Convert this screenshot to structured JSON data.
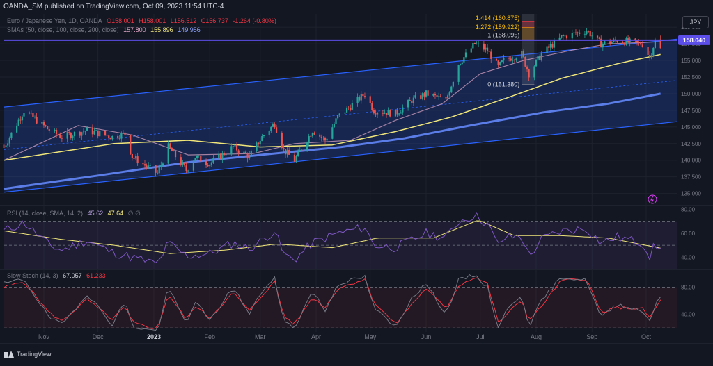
{
  "header": {
    "publisher_line": "OANDA_SM published on TradingView.com, Oct 09, 2023 11:54 UTC-4",
    "currency": "JPY"
  },
  "legend": {
    "symbol": "Euro / Japanese Yen, 1D, OANDA",
    "o": "O158.001",
    "h": "H158.001",
    "l": "L156.512",
    "c": "C156.737",
    "chg": "-1.264 (-0.80%)",
    "sma_label": "SMAs (50, close, 100, close, 200, close)",
    "sma50": "157.800",
    "sma100": "155.896",
    "sma200": "149.956",
    "sma50_color": "#e1a8c8",
    "sma100_color": "#f0e67a",
    "sma200_color": "#5b7de8"
  },
  "rsi_legend": {
    "label": "RSI (14, close, SMA, 14, 2)",
    "rsi": "45.62",
    "sma": "47.64",
    "extra": "∅ ∅"
  },
  "stoch_legend": {
    "label": "Slow Stoch (14, 3)",
    "k": "67.057",
    "d": "61.233"
  },
  "annotations": {
    "current_price": "158.040",
    "fib": [
      "1.414 (160.875)",
      "1.272 (159.922)",
      "1 (158.095)",
      "0 (151.380)"
    ]
  },
  "footer": {
    "brand": "TradingView"
  },
  "chart_data": [
    {
      "type": "candlestick",
      "title": "Euro / Japanese Yen, 1D, OANDA",
      "ylim": [
        133.5,
        162
      ],
      "y_ticks": [
        "160.000",
        "157.500",
        "155.000",
        "152.500",
        "150.000",
        "147.500",
        "145.000",
        "142.500",
        "140.000",
        "137.500",
        "135.000"
      ],
      "x_ticks": [
        "Nov",
        "Dec",
        "2023",
        "Feb",
        "Mar",
        "Apr",
        "May",
        "Jun",
        "Jul",
        "Aug",
        "Sep",
        "Oct"
      ],
      "x_range": [
        "2022-10-10",
        "2023-10-18"
      ],
      "close_path": [
        [
          "2022-10-10",
          142.0
        ],
        [
          "2022-10-21",
          147.5
        ],
        [
          "2022-11-04",
          144.5
        ],
        [
          "2022-11-11",
          143.5
        ],
        [
          "2022-11-25",
          144.5
        ],
        [
          "2022-12-09",
          143.5
        ],
        [
          "2022-12-16",
          144.0
        ],
        [
          "2022-12-20",
          140.5
        ],
        [
          "2023-01-03",
          138.0
        ],
        [
          "2023-01-09",
          142.0
        ],
        [
          "2023-01-19",
          138.5
        ],
        [
          "2023-01-24",
          140.5
        ],
        [
          "2023-02-01",
          139.5
        ],
        [
          "2023-02-14",
          142.0
        ],
        [
          "2023-02-23",
          140.5
        ],
        [
          "2023-03-02",
          143.5
        ],
        [
          "2023-03-09",
          145.5
        ],
        [
          "2023-03-14",
          141.5
        ],
        [
          "2023-03-20",
          140.0
        ],
        [
          "2023-03-30",
          144.5
        ],
        [
          "2023-04-06",
          143.0
        ],
        [
          "2023-04-13",
          146.5
        ],
        [
          "2023-04-28",
          150.0
        ],
        [
          "2023-05-03",
          147.5
        ],
        [
          "2023-05-15",
          147.0
        ],
        [
          "2023-05-24",
          149.0
        ],
        [
          "2023-06-01",
          150.0
        ],
        [
          "2023-06-12",
          149.0
        ],
        [
          "2023-06-19",
          154.5
        ],
        [
          "2023-06-28",
          157.5
        ],
        [
          "2023-07-05",
          156.5
        ],
        [
          "2023-07-11",
          154.0
        ],
        [
          "2023-07-14",
          155.0
        ],
        [
          "2023-07-24",
          156.0
        ],
        [
          "2023-07-28",
          153.0
        ],
        [
          "2023-08-04",
          156.0
        ],
        [
          "2023-08-15",
          158.5
        ],
        [
          "2023-08-29",
          159.5
        ],
        [
          "2023-09-06",
          157.5
        ],
        [
          "2023-09-15",
          158.0
        ],
        [
          "2023-09-29",
          157.5
        ],
        [
          "2023-10-03",
          155.5
        ],
        [
          "2023-10-06",
          158.0
        ],
        [
          "2023-10-09",
          156.7
        ]
      ],
      "series": [
        {
          "name": "SMA 50",
          "color": "#e1a8c8",
          "values": [
            [
              "2022-10-10",
              140.0
            ],
            [
              "2022-11-20",
              145.2
            ],
            [
              "2022-12-20",
              143.8
            ],
            [
              "2023-01-20",
              140.8
            ],
            [
              "2023-02-25",
              141.0
            ],
            [
              "2023-03-20",
              142.5
            ],
            [
              "2023-04-20",
              143.0
            ],
            [
              "2023-05-15",
              146.0
            ],
            [
              "2023-06-10",
              148.5
            ],
            [
              "2023-07-01",
              153.0
            ],
            [
              "2023-07-25",
              155.0
            ],
            [
              "2023-08-20",
              156.5
            ],
            [
              "2023-09-10",
              157.5
            ],
            [
              "2023-10-09",
              157.8
            ]
          ]
        },
        {
          "name": "SMA 100",
          "color": "#f0e67a",
          "values": [
            [
              "2022-10-10",
              140.0
            ],
            [
              "2022-12-10",
              142.5
            ],
            [
              "2023-01-20",
              143.0
            ],
            [
              "2023-03-01",
              142.0
            ],
            [
              "2023-04-10",
              142.3
            ],
            [
              "2023-05-15",
              144.3
            ],
            [
              "2023-06-15",
              146.5
            ],
            [
              "2023-07-15",
              149.3
            ],
            [
              "2023-08-15",
              152.3
            ],
            [
              "2023-09-15",
              154.5
            ],
            [
              "2023-10-09",
              155.9
            ]
          ]
        },
        {
          "name": "SMA 200",
          "color": "#5b7de8",
          "values": [
            [
              "2022-10-10",
              135.7
            ],
            [
              "2022-12-01",
              137.7
            ],
            [
              "2023-01-20",
              139.7
            ],
            [
              "2023-03-01",
              140.8
            ],
            [
              "2023-04-15",
              142.0
            ],
            [
              "2023-05-20",
              143.3
            ],
            [
              "2023-06-25",
              145.2
            ],
            [
              "2023-08-05",
              147.2
            ],
            [
              "2023-09-10",
              148.5
            ],
            [
              "2023-10-09",
              150.0
            ]
          ]
        }
      ],
      "channel": {
        "upper": [
          [
            "2022-10-10",
            148.0
          ],
          [
            "2023-10-18",
            158.2
          ]
        ],
        "lower": [
          [
            "2022-10-10",
            135.2
          ],
          [
            "2023-10-18",
            145.8
          ]
        ],
        "mid": [
          [
            "2022-10-10",
            141.6
          ],
          [
            "2023-10-18",
            152.0
          ]
        ]
      },
      "resistance": 158.04,
      "fib_box": {
        "from": "2023-07-24",
        "to": "2023-07-31",
        "levels": [
          160.875,
          159.922,
          158.095,
          151.38
        ]
      }
    },
    {
      "type": "line",
      "title": "RSI (14, close, SMA, 14, 2)",
      "ylim": [
        31.5,
        82
      ],
      "y_ticks": [
        "80.00",
        "60.00",
        "40.00"
      ],
      "bands": [
        30,
        50,
        70
      ],
      "series": [
        {
          "name": "RSI",
          "color": "#7e57c2",
          "values": [
            [
              "2022-10-10",
              62
            ],
            [
              "2022-10-21",
              69
            ],
            [
              "2022-11-04",
              50
            ],
            [
              "2022-11-11",
              46
            ],
            [
              "2022-11-25",
              54
            ],
            [
              "2022-12-09",
              44
            ],
            [
              "2022-12-20",
              40
            ],
            [
              "2023-01-03",
              34
            ],
            [
              "2023-01-09",
              52
            ],
            [
              "2023-01-19",
              41
            ],
            [
              "2023-02-01",
              43
            ],
            [
              "2023-02-14",
              52
            ],
            [
              "2023-02-23",
              47
            ],
            [
              "2023-03-09",
              62
            ],
            [
              "2023-03-14",
              42
            ],
            [
              "2023-03-20",
              38
            ],
            [
              "2023-03-30",
              52
            ],
            [
              "2023-04-13",
              60
            ],
            [
              "2023-04-28",
              65
            ],
            [
              "2023-05-03",
              50
            ],
            [
              "2023-05-15",
              48
            ],
            [
              "2023-06-01",
              60
            ],
            [
              "2023-06-12",
              56
            ],
            [
              "2023-06-19",
              70
            ],
            [
              "2023-06-28",
              75
            ],
            [
              "2023-07-05",
              68
            ],
            [
              "2023-07-11",
              50
            ],
            [
              "2023-07-14",
              56
            ],
            [
              "2023-07-24",
              58
            ],
            [
              "2023-07-28",
              40
            ],
            [
              "2023-08-04",
              55
            ],
            [
              "2023-08-15",
              62
            ],
            [
              "2023-08-29",
              64
            ],
            [
              "2023-09-06",
              52
            ],
            [
              "2023-09-15",
              57
            ],
            [
              "2023-09-29",
              52
            ],
            [
              "2023-10-03",
              41
            ],
            [
              "2023-10-06",
              51
            ],
            [
              "2023-10-09",
              45.6
            ]
          ]
        },
        {
          "name": "SMA",
          "color": "#f0e67a",
          "values": [
            [
              "2022-10-10",
              62
            ],
            [
              "2022-11-10",
              55
            ],
            [
              "2022-12-10",
              50
            ],
            [
              "2023-01-10",
              43
            ],
            [
              "2023-02-10",
              46
            ],
            [
              "2023-03-10",
              51
            ],
            [
              "2023-04-10",
              48
            ],
            [
              "2023-05-05",
              56
            ],
            [
              "2023-06-05",
              56
            ],
            [
              "2023-06-30",
              71
            ],
            [
              "2023-07-20",
              58
            ],
            [
              "2023-08-15",
              58
            ],
            [
              "2023-09-10",
              56
            ],
            [
              "2023-10-09",
              47.6
            ]
          ]
        }
      ]
    },
    {
      "type": "line",
      "title": "Slow Stoch (14, 3)",
      "ylim": [
        14,
        104
      ],
      "y_ticks": [
        "80.00",
        "40.00"
      ],
      "bands": [
        20,
        80
      ],
      "series": [
        {
          "name": "%K",
          "color": "#787b86",
          "values": [
            [
              "2022-10-10",
              85
            ],
            [
              "2022-10-21",
              92
            ],
            [
              "2022-11-04",
              35
            ],
            [
              "2022-11-11",
              25
            ],
            [
              "2022-11-25",
              70
            ],
            [
              "2022-12-09",
              25
            ],
            [
              "2022-12-16",
              60
            ],
            [
              "2022-12-20",
              22
            ],
            [
              "2023-01-03",
              15
            ],
            [
              "2023-01-09",
              80
            ],
            [
              "2023-01-19",
              25
            ],
            [
              "2023-01-24",
              60
            ],
            [
              "2023-02-01",
              30
            ],
            [
              "2023-02-14",
              80
            ],
            [
              "2023-02-23",
              40
            ],
            [
              "2023-03-02",
              75
            ],
            [
              "2023-03-09",
              92
            ],
            [
              "2023-03-14",
              30
            ],
            [
              "2023-03-20",
              20
            ],
            [
              "2023-03-30",
              75
            ],
            [
              "2023-04-06",
              45
            ],
            [
              "2023-04-13",
              85
            ],
            [
              "2023-04-28",
              95
            ],
            [
              "2023-05-03",
              50
            ],
            [
              "2023-05-15",
              20
            ],
            [
              "2023-05-24",
              65
            ],
            [
              "2023-06-01",
              85
            ],
            [
              "2023-06-12",
              40
            ],
            [
              "2023-06-19",
              90
            ],
            [
              "2023-06-28",
              98
            ],
            [
              "2023-07-05",
              80
            ],
            [
              "2023-07-11",
              20
            ],
            [
              "2023-07-14",
              40
            ],
            [
              "2023-07-24",
              70
            ],
            [
              "2023-07-28",
              22
            ],
            [
              "2023-08-04",
              60
            ],
            [
              "2023-08-15",
              95
            ],
            [
              "2023-08-29",
              90
            ],
            [
              "2023-09-06",
              35
            ],
            [
              "2023-09-15",
              55
            ],
            [
              "2023-09-29",
              45
            ],
            [
              "2023-10-03",
              30
            ],
            [
              "2023-10-06",
              55
            ],
            [
              "2023-10-09",
              67
            ]
          ]
        },
        {
          "name": "%D",
          "color": "#f23645",
          "values": [
            [
              "2022-10-10",
              80
            ],
            [
              "2022-10-21",
              88
            ],
            [
              "2022-11-04",
              42
            ],
            [
              "2022-11-11",
              30
            ],
            [
              "2022-11-25",
              62
            ],
            [
              "2022-12-09",
              32
            ],
            [
              "2022-12-16",
              52
            ],
            [
              "2022-12-20",
              28
            ],
            [
              "2023-01-03",
              18
            ],
            [
              "2023-01-09",
              70
            ],
            [
              "2023-01-19",
              32
            ],
            [
              "2023-01-24",
              52
            ],
            [
              "2023-02-01",
              35
            ],
            [
              "2023-02-14",
              72
            ],
            [
              "2023-02-23",
              45
            ],
            [
              "2023-03-02",
              68
            ],
            [
              "2023-03-09",
              88
            ],
            [
              "2023-03-14",
              38
            ],
            [
              "2023-03-20",
              25
            ],
            [
              "2023-03-30",
              65
            ],
            [
              "2023-04-06",
              50
            ],
            [
              "2023-04-13",
              78
            ],
            [
              "2023-04-28",
              92
            ],
            [
              "2023-05-03",
              58
            ],
            [
              "2023-05-15",
              25
            ],
            [
              "2023-05-24",
              55
            ],
            [
              "2023-06-01",
              78
            ],
            [
              "2023-06-12",
              48
            ],
            [
              "2023-06-19",
              82
            ],
            [
              "2023-06-28",
              95
            ],
            [
              "2023-07-05",
              85
            ],
            [
              "2023-07-11",
              28
            ],
            [
              "2023-07-14",
              35
            ],
            [
              "2023-07-24",
              62
            ],
            [
              "2023-07-28",
              30
            ],
            [
              "2023-08-04",
              52
            ],
            [
              "2023-08-15",
              90
            ],
            [
              "2023-08-29",
              92
            ],
            [
              "2023-09-06",
              42
            ],
            [
              "2023-09-15",
              50
            ],
            [
              "2023-09-29",
              48
            ],
            [
              "2023-10-03",
              35
            ],
            [
              "2023-10-06",
              48
            ],
            [
              "2023-10-09",
              61
            ]
          ]
        }
      ]
    }
  ]
}
